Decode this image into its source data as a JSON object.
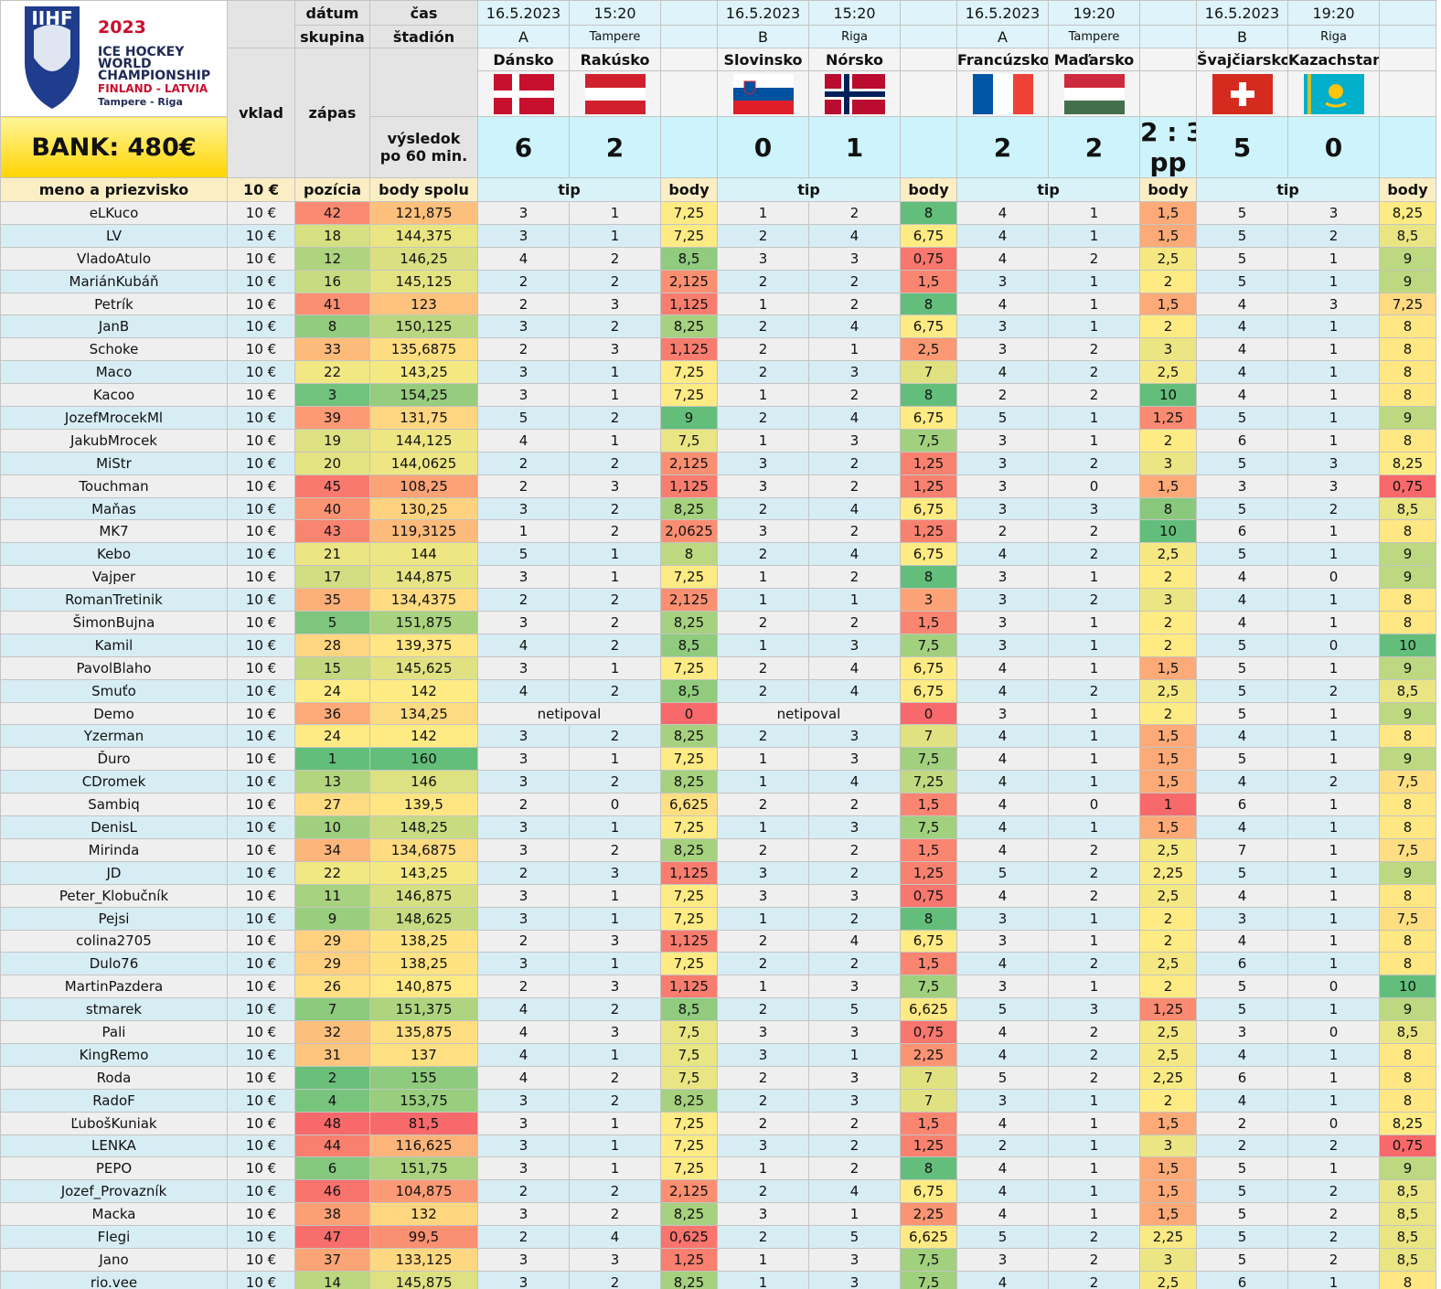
{
  "logo": {
    "brand": "IIHF",
    "year": "2023",
    "line1": "ICE HOCKEY",
    "line2": "WORLD",
    "line3": "CHAMPIONSHIP",
    "line4": "FINLAND - LATVIA",
    "line5": "Tampere - Riga"
  },
  "bank": "BANK: 480€",
  "header": {
    "date": "dátum",
    "time": "čas",
    "group": "skupina",
    "stadium": "štadión",
    "deposit": "vklad",
    "match": "zápas",
    "result1": "výsledok",
    "result2": "po 60 min.",
    "name": "meno a priezvisko",
    "deposit_amount": "10 €",
    "position": "pozícia",
    "total": "body spolu",
    "tip": "tip",
    "points": "body"
  },
  "matches": [
    {
      "date": "16.5.2023",
      "time": "15:20",
      "group": "A",
      "stadium": "Tampere",
      "home": "Dánsko",
      "away": "Rakúsko",
      "home_score": 6,
      "away_score": 2
    },
    {
      "date": "16.5.2023",
      "time": "15:20",
      "group": "B",
      "stadium": "Riga",
      "home": "Slovinsko",
      "away": "Nórsko",
      "home_score": 0,
      "away_score": 1
    },
    {
      "date": "16.5.2023",
      "time": "19:20",
      "group": "A",
      "stadium": "Tampere",
      "home": "Francúzsko",
      "away": "Maďarsko",
      "home_score": 2,
      "away_score": 2,
      "final": "2 : 3",
      "note": "pp"
    },
    {
      "date": "16.5.2023",
      "time": "19:20",
      "group": "B",
      "stadium": "Riga",
      "home": "Švajčiarsko",
      "away": "Kazachstan",
      "home_score": 5,
      "away_score": 0
    }
  ],
  "rows": [
    [
      "eLKuco",
      "10 €",
      42,
      "121,875",
      [
        3,
        1,
        "7,25"
      ],
      [
        1,
        2,
        "8"
      ],
      [
        4,
        1,
        "1,5"
      ],
      [
        5,
        3,
        "8,25"
      ]
    ],
    [
      "LV",
      "10 €",
      18,
      "144,375",
      [
        3,
        1,
        "7,25"
      ],
      [
        2,
        4,
        "6,75"
      ],
      [
        4,
        1,
        "1,5"
      ],
      [
        5,
        2,
        "8,5"
      ]
    ],
    [
      "VladoAtulo",
      "10 €",
      12,
      "146,25",
      [
        4,
        2,
        "8,5"
      ],
      [
        3,
        3,
        "0,75"
      ],
      [
        4,
        2,
        "2,5"
      ],
      [
        5,
        1,
        "9"
      ]
    ],
    [
      "MariánKubáň",
      "10 €",
      16,
      "145,125",
      [
        2,
        2,
        "2,125"
      ],
      [
        2,
        2,
        "1,5"
      ],
      [
        3,
        1,
        "2"
      ],
      [
        5,
        1,
        "9"
      ]
    ],
    [
      "Petrík",
      "10 €",
      41,
      "123",
      [
        2,
        3,
        "1,125"
      ],
      [
        1,
        2,
        "8"
      ],
      [
        4,
        1,
        "1,5"
      ],
      [
        4,
        3,
        "7,25"
      ]
    ],
    [
      "JanB",
      "10 €",
      8,
      "150,125",
      [
        3,
        2,
        "8,25"
      ],
      [
        2,
        4,
        "6,75"
      ],
      [
        3,
        1,
        "2"
      ],
      [
        4,
        1,
        "8"
      ]
    ],
    [
      "Schoke",
      "10 €",
      33,
      "135,6875",
      [
        2,
        3,
        "1,125"
      ],
      [
        2,
        1,
        "2,5"
      ],
      [
        3,
        2,
        "3"
      ],
      [
        4,
        1,
        "8"
      ]
    ],
    [
      "Maco",
      "10 €",
      22,
      "143,25",
      [
        3,
        1,
        "7,25"
      ],
      [
        2,
        3,
        "7"
      ],
      [
        4,
        2,
        "2,5"
      ],
      [
        4,
        1,
        "8"
      ]
    ],
    [
      "Kacoo",
      "10 €",
      3,
      "154,25",
      [
        3,
        1,
        "7,25"
      ],
      [
        1,
        2,
        "8"
      ],
      [
        2,
        2,
        "10"
      ],
      [
        4,
        1,
        "8"
      ]
    ],
    [
      "JozefMrocekMl",
      "10 €",
      39,
      "131,75",
      [
        5,
        2,
        "9"
      ],
      [
        2,
        4,
        "6,75"
      ],
      [
        5,
        1,
        "1,25"
      ],
      [
        5,
        1,
        "9"
      ]
    ],
    [
      "JakubMrocek",
      "10 €",
      19,
      "144,125",
      [
        4,
        1,
        "7,5"
      ],
      [
        1,
        3,
        "7,5"
      ],
      [
        3,
        1,
        "2"
      ],
      [
        6,
        1,
        "8"
      ]
    ],
    [
      "MiStr",
      "10 €",
      20,
      "144,0625",
      [
        2,
        2,
        "2,125"
      ],
      [
        3,
        2,
        "1,25"
      ],
      [
        3,
        2,
        "3"
      ],
      [
        5,
        3,
        "8,25"
      ]
    ],
    [
      "Touchman",
      "10 €",
      45,
      "108,25",
      [
        2,
        3,
        "1,125"
      ],
      [
        3,
        2,
        "1,25"
      ],
      [
        3,
        0,
        "1,5"
      ],
      [
        3,
        3,
        "0,75"
      ]
    ],
    [
      "Maňas",
      "10 €",
      40,
      "130,25",
      [
        3,
        2,
        "8,25"
      ],
      [
        2,
        4,
        "6,75"
      ],
      [
        3,
        3,
        "8"
      ],
      [
        5,
        2,
        "8,5"
      ]
    ],
    [
      "MK7",
      "10 €",
      43,
      "119,3125",
      [
        1,
        2,
        "2,0625"
      ],
      [
        3,
        2,
        "1,25"
      ],
      [
        2,
        2,
        "10"
      ],
      [
        6,
        1,
        "8"
      ]
    ],
    [
      "Kebo",
      "10 €",
      21,
      "144",
      [
        5,
        1,
        "8"
      ],
      [
        2,
        4,
        "6,75"
      ],
      [
        4,
        2,
        "2,5"
      ],
      [
        5,
        1,
        "9"
      ]
    ],
    [
      "Vajper",
      "10 €",
      17,
      "144,875",
      [
        3,
        1,
        "7,25"
      ],
      [
        1,
        2,
        "8"
      ],
      [
        3,
        1,
        "2"
      ],
      [
        4,
        0,
        "9"
      ]
    ],
    [
      "RomanTretinik",
      "10 €",
      35,
      "134,4375",
      [
        2,
        2,
        "2,125"
      ],
      [
        1,
        1,
        "3"
      ],
      [
        3,
        2,
        "3"
      ],
      [
        4,
        1,
        "8"
      ]
    ],
    [
      "ŠimonBujna",
      "10 €",
      5,
      "151,875",
      [
        3,
        2,
        "8,25"
      ],
      [
        2,
        2,
        "1,5"
      ],
      [
        3,
        1,
        "2"
      ],
      [
        4,
        1,
        "8"
      ]
    ],
    [
      "Kamil",
      "10 €",
      28,
      "139,375",
      [
        4,
        2,
        "8,5"
      ],
      [
        1,
        3,
        "7,5"
      ],
      [
        3,
        1,
        "2"
      ],
      [
        5,
        0,
        "10"
      ]
    ],
    [
      "PavolBlaho",
      "10 €",
      15,
      "145,625",
      [
        3,
        1,
        "7,25"
      ],
      [
        2,
        4,
        "6,75"
      ],
      [
        4,
        1,
        "1,5"
      ],
      [
        5,
        1,
        "9"
      ]
    ],
    [
      "Smuťo",
      "10 €",
      24,
      "142",
      [
        4,
        2,
        "8,5"
      ],
      [
        2,
        4,
        "6,75"
      ],
      [
        4,
        2,
        "2,5"
      ],
      [
        5,
        2,
        "8,5"
      ]
    ],
    [
      "Demo",
      "10 €",
      36,
      "134,25",
      [
        "netipoval",
        "0"
      ],
      [
        "netipoval",
        "0"
      ],
      [
        3,
        1,
        "2"
      ],
      [
        5,
        1,
        "9"
      ]
    ],
    [
      "Yzerman",
      "10 €",
      24,
      "142",
      [
        3,
        2,
        "8,25"
      ],
      [
        2,
        3,
        "7"
      ],
      [
        4,
        1,
        "1,5"
      ],
      [
        4,
        1,
        "8"
      ]
    ],
    [
      "Ďuro",
      "10 €",
      1,
      "160",
      [
        3,
        1,
        "7,25"
      ],
      [
        1,
        3,
        "7,5"
      ],
      [
        4,
        1,
        "1,5"
      ],
      [
        5,
        1,
        "9"
      ]
    ],
    [
      "CDromek",
      "10 €",
      13,
      "146",
      [
        3,
        2,
        "8,25"
      ],
      [
        1,
        4,
        "7,25"
      ],
      [
        4,
        1,
        "1,5"
      ],
      [
        4,
        2,
        "7,5"
      ]
    ],
    [
      "Sambiq",
      "10 €",
      27,
      "139,5",
      [
        2,
        0,
        "6,625"
      ],
      [
        2,
        2,
        "1,5"
      ],
      [
        4,
        0,
        "1"
      ],
      [
        6,
        1,
        "8"
      ]
    ],
    [
      "DenisL",
      "10 €",
      10,
      "148,25",
      [
        3,
        1,
        "7,25"
      ],
      [
        1,
        3,
        "7,5"
      ],
      [
        4,
        1,
        "1,5"
      ],
      [
        4,
        1,
        "8"
      ]
    ],
    [
      "Mirinda",
      "10 €",
      34,
      "134,6875",
      [
        3,
        2,
        "8,25"
      ],
      [
        2,
        2,
        "1,5"
      ],
      [
        4,
        2,
        "2,5"
      ],
      [
        7,
        1,
        "7,5"
      ]
    ],
    [
      "JD",
      "10 €",
      22,
      "143,25",
      [
        2,
        3,
        "1,125"
      ],
      [
        3,
        2,
        "1,25"
      ],
      [
        5,
        2,
        "2,25"
      ],
      [
        5,
        1,
        "9"
      ]
    ],
    [
      "Peter_Klobučník",
      "10 €",
      11,
      "146,875",
      [
        3,
        1,
        "7,25"
      ],
      [
        3,
        3,
        "0,75"
      ],
      [
        4,
        2,
        "2,5"
      ],
      [
        4,
        1,
        "8"
      ]
    ],
    [
      "Pejsi",
      "10 €",
      9,
      "148,625",
      [
        3,
        1,
        "7,25"
      ],
      [
        1,
        2,
        "8"
      ],
      [
        3,
        1,
        "2"
      ],
      [
        3,
        1,
        "7,5"
      ]
    ],
    [
      "colina2705",
      "10 €",
      29,
      "138,25",
      [
        2,
        3,
        "1,125"
      ],
      [
        2,
        4,
        "6,75"
      ],
      [
        3,
        1,
        "2"
      ],
      [
        4,
        1,
        "8"
      ]
    ],
    [
      "Dulo76",
      "10 €",
      29,
      "138,25",
      [
        3,
        1,
        "7,25"
      ],
      [
        2,
        2,
        "1,5"
      ],
      [
        4,
        2,
        "2,5"
      ],
      [
        6,
        1,
        "8"
      ]
    ],
    [
      "MartinPazdera",
      "10 €",
      26,
      "140,875",
      [
        2,
        3,
        "1,125"
      ],
      [
        1,
        3,
        "7,5"
      ],
      [
        3,
        1,
        "2"
      ],
      [
        5,
        0,
        "10"
      ]
    ],
    [
      "stmarek",
      "10 €",
      7,
      "151,375",
      [
        4,
        2,
        "8,5"
      ],
      [
        2,
        5,
        "6,625"
      ],
      [
        5,
        3,
        "1,25"
      ],
      [
        5,
        1,
        "9"
      ]
    ],
    [
      "Pali",
      "10 €",
      32,
      "135,875",
      [
        4,
        3,
        "7,5"
      ],
      [
        3,
        3,
        "0,75"
      ],
      [
        4,
        2,
        "2,5"
      ],
      [
        3,
        0,
        "8,5"
      ]
    ],
    [
      "KingRemo",
      "10 €",
      31,
      "137",
      [
        4,
        1,
        "7,5"
      ],
      [
        3,
        1,
        "2,25"
      ],
      [
        4,
        2,
        "2,5"
      ],
      [
        4,
        1,
        "8"
      ]
    ],
    [
      "Roda",
      "10 €",
      2,
      "155",
      [
        4,
        2,
        "7,5"
      ],
      [
        2,
        3,
        "7"
      ],
      [
        5,
        2,
        "2,25"
      ],
      [
        6,
        1,
        "8"
      ]
    ],
    [
      "RadoF",
      "10 €",
      4,
      "153,75",
      [
        3,
        2,
        "8,25"
      ],
      [
        2,
        3,
        "7"
      ],
      [
        3,
        1,
        "2"
      ],
      [
        4,
        1,
        "8"
      ]
    ],
    [
      "ĽubošKuniak",
      "10 €",
      48,
      "81,5",
      [
        3,
        1,
        "7,25"
      ],
      [
        2,
        2,
        "1,5"
      ],
      [
        4,
        1,
        "1,5"
      ],
      [
        2,
        0,
        "8,25"
      ]
    ],
    [
      "LENKA",
      "10 €",
      44,
      "116,625",
      [
        3,
        1,
        "7,25"
      ],
      [
        3,
        2,
        "1,25"
      ],
      [
        2,
        1,
        "3"
      ],
      [
        2,
        2,
        "0,75"
      ]
    ],
    [
      "PEPO",
      "10 €",
      6,
      "151,75",
      [
        3,
        1,
        "7,25"
      ],
      [
        1,
        2,
        "8"
      ],
      [
        4,
        1,
        "1,5"
      ],
      [
        5,
        1,
        "9"
      ]
    ],
    [
      "Jozef_Provazník",
      "10 €",
      46,
      "104,875",
      [
        2,
        2,
        "2,125"
      ],
      [
        2,
        4,
        "6,75"
      ],
      [
        4,
        1,
        "1,5"
      ],
      [
        5,
        2,
        "8,5"
      ]
    ],
    [
      "Macka",
      "10 €",
      38,
      "132",
      [
        3,
        2,
        "8,25"
      ],
      [
        3,
        1,
        "2,25"
      ],
      [
        4,
        1,
        "1,5"
      ],
      [
        5,
        2,
        "8,5"
      ]
    ],
    [
      "Flegi",
      "10 €",
      47,
      "99,5",
      [
        2,
        4,
        "0,625"
      ],
      [
        2,
        5,
        "6,625"
      ],
      [
        5,
        2,
        "2,25"
      ],
      [
        5,
        2,
        "8,5"
      ]
    ],
    [
      "Jano",
      "10 €",
      37,
      "133,125",
      [
        3,
        3,
        "1,25"
      ],
      [
        1,
        3,
        "7,5"
      ],
      [
        3,
        2,
        "3"
      ],
      [
        5,
        2,
        "8,5"
      ]
    ],
    [
      "rio.vee",
      "10 €",
      14,
      "145,875",
      [
        3,
        2,
        "8,25"
      ],
      [
        1,
        3,
        "7,5"
      ],
      [
        4,
        2,
        "2,5"
      ],
      [
        6,
        1,
        "8"
      ]
    ]
  ]
}
